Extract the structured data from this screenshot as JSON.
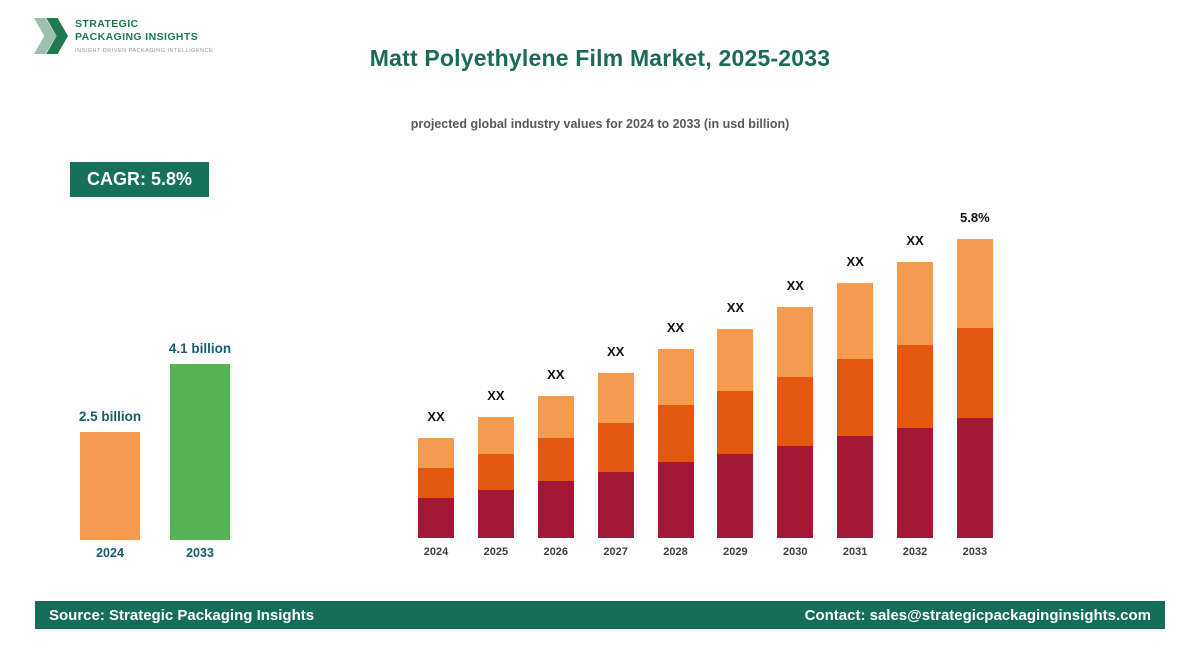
{
  "brand": {
    "name_line1": "STRATEGIC",
    "name_line2": "PACKAGING INSIGHTS",
    "tagline": "INSIGHT-DRIVEN PACKAGING INTELLIGENCE"
  },
  "header": {
    "title": "Matt Polyethylene Film Market, 2025-2033",
    "subtitle": "projected global industry values for 2024 to 2033 (in usd billion)"
  },
  "cagr_badge": "CAGR: 5.8%",
  "footer": {
    "source": "Source: Strategic Packaging Insights",
    "contact": "Contact: sales@strategicpackaginginsights.com"
  },
  "colors": {
    "brand_green": "#166e5a",
    "badge_green": "#17705c",
    "title_teal": "#1b6a5a",
    "crimson": "#a31837",
    "dark_orange": "#e4570e",
    "light_orange": "#f59b50",
    "growth_green": "#55b355"
  },
  "chart_data": [
    {
      "type": "bar",
      "name": "growth-summary",
      "categories": [
        "2024",
        "2033"
      ],
      "values": [
        2.5,
        4.1
      ],
      "value_labels": [
        "2.5 billion",
        "4.1 billion"
      ],
      "bar_colors": [
        "#f59b50",
        "#55b355"
      ],
      "unit": "usd billion",
      "ylim": [
        0,
        4.5
      ],
      "grid": false,
      "legend": "none"
    },
    {
      "type": "bar",
      "subtype": "stacked",
      "name": "projection-2024-2033",
      "categories": [
        "2024",
        "2025",
        "2026",
        "2027",
        "2028",
        "2029",
        "2030",
        "2031",
        "2032",
        "2033"
      ],
      "series": [
        {
          "name": "bottom-segment",
          "color": "#a31837",
          "values": [
            40,
            48,
            57,
            66,
            76,
            84,
            92,
            102,
            110,
            120
          ]
        },
        {
          "name": "middle-segment",
          "color": "#e4570e",
          "values": [
            30,
            36,
            43,
            49,
            57,
            63,
            69,
            77,
            83,
            90
          ]
        },
        {
          "name": "top-segment",
          "color": "#f59b50",
          "values": [
            30,
            37,
            42,
            50,
            56,
            62,
            70,
            76,
            83,
            89
          ]
        }
      ],
      "bar_labels": [
        "XX",
        "XX",
        "XX",
        "XX",
        "XX",
        "XX",
        "XX",
        "XX",
        "XX",
        "5.8%"
      ],
      "values_note": "numeric values masked as XX in source image; series values are relative bar heights",
      "grid": false,
      "legend": "none"
    }
  ]
}
